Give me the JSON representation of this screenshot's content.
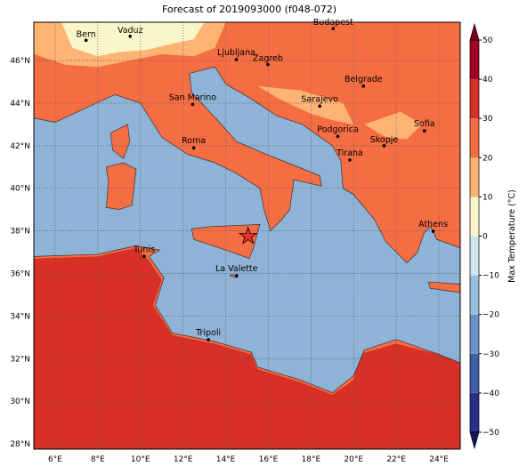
{
  "title": "Forecast of 2019093000 (f048-072)",
  "map": {
    "xlim": [
      5,
      25
    ],
    "ylim": [
      27.75,
      47.8
    ],
    "xticks": [
      {
        "value": 6,
        "label": "6°E"
      },
      {
        "value": 8,
        "label": "8°E"
      },
      {
        "value": 10,
        "label": "10°E"
      },
      {
        "value": 12,
        "label": "12°E"
      },
      {
        "value": 14,
        "label": "14°E"
      },
      {
        "value": 16,
        "label": "16°E"
      },
      {
        "value": 18,
        "label": "18°E"
      },
      {
        "value": 20,
        "label": "20°E"
      },
      {
        "value": 22,
        "label": "22°E"
      },
      {
        "value": 24,
        "label": "24°E"
      }
    ],
    "yticks": [
      {
        "value": 28,
        "label": "28°N"
      },
      {
        "value": 30,
        "label": "30°N"
      },
      {
        "value": 32,
        "label": "32°N"
      },
      {
        "value": 34,
        "label": "34°N"
      },
      {
        "value": 36,
        "label": "36°N"
      },
      {
        "value": 38,
        "label": "38°N"
      },
      {
        "value": 40,
        "label": "40°N"
      },
      {
        "value": 42,
        "label": "42°N"
      },
      {
        "value": 44,
        "label": "44°N"
      },
      {
        "value": 46,
        "label": "46°N"
      }
    ],
    "grid": true,
    "cities": [
      "Bern",
      "Vaduz",
      "Budapest",
      "Ljubljana",
      "Zagreb",
      "Belgrade",
      "San Marino",
      "Sarajevo",
      "Roma",
      "Podgorica",
      "Skopje",
      "Sofia",
      "Tirana",
      "Athens",
      "Tunis",
      "La Valette",
      "Tripoli"
    ]
  },
  "colorbar": {
    "label": "Max Temperature (°C)",
    "lim": [
      -50,
      50
    ],
    "ticks": [
      {
        "value": -50,
        "label": "−50"
      },
      {
        "value": -40,
        "label": "−40"
      },
      {
        "value": -30,
        "label": "−30"
      },
      {
        "value": -20,
        "label": "−20"
      },
      {
        "value": -10,
        "label": "−10"
      },
      0,
      10,
      20,
      30,
      40,
      50
    ],
    "colors": [
      "#2a2f8c",
      "#3f5ea8",
      "#6a93c6",
      "#98bedc",
      "#cfe6ef",
      "#fbf6c9",
      "#fdb374",
      "#f46d43",
      "#d73027",
      "#a50026"
    ],
    "under": "#14175e",
    "over": "#7a0020"
  }
}
